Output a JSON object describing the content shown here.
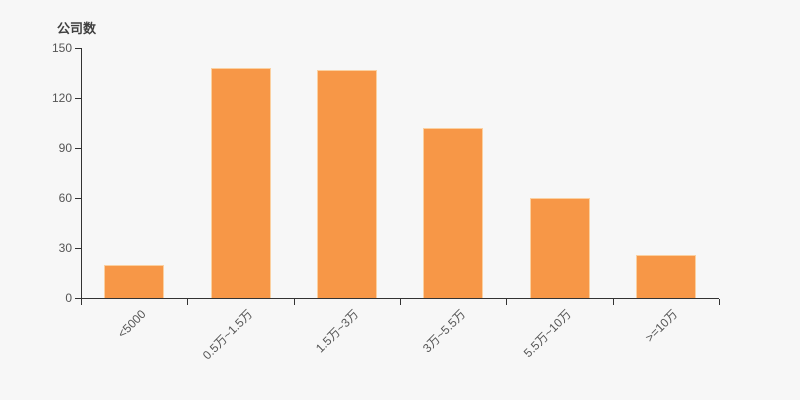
{
  "chart_data": {
    "type": "bar",
    "title": "公司数",
    "ylabel": "公司数",
    "xlabel": "",
    "categories": [
      "<5000",
      "0.5万~1.5万",
      "1.5万~3万",
      "3万~5.5万",
      "5.5万~10万",
      ">=10万"
    ],
    "values": [
      20,
      138,
      137,
      102,
      60,
      26
    ],
    "ylim": [
      0,
      150
    ],
    "yticks": [
      0,
      30,
      60,
      90,
      120,
      150
    ],
    "grid": false,
    "legend_position": "none",
    "x_label_rotation": -45,
    "colors": {
      "background": "#f7f7f7",
      "bar_fill": "#f79747",
      "bar_border": "#fbd0a0",
      "axis": "#333333",
      "tick_label": "#555555",
      "title_text": "#404040"
    }
  }
}
